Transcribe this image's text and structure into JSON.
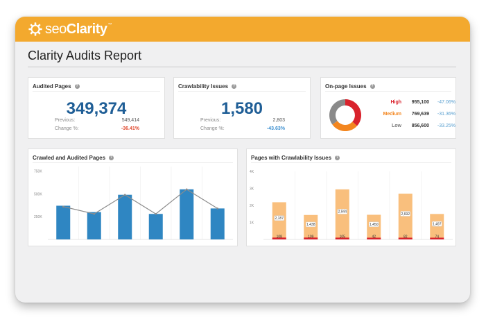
{
  "brand": {
    "name_part1": "seo",
    "name_part2": "Clarity",
    "tm": "™",
    "accent": "#f3a92e"
  },
  "page_title": "Clarity Audits Report",
  "audited_pages": {
    "title": "Audited Pages",
    "help": "?",
    "value": "349,374",
    "previous_label": "Previous:",
    "previous_value": "549,414",
    "change_label": "Change %:",
    "change_value": "-36.41%",
    "change_color": "#e0492e"
  },
  "crawlability_issues": {
    "title": "Crawlability Issues",
    "help": "?",
    "value": "1,580",
    "previous_label": "Previous:",
    "previous_value": "2,803",
    "change_label": "Change %:",
    "change_value": "-43.63%",
    "change_color": "#3b8fd0"
  },
  "onpage_issues": {
    "title": "On-page Issues",
    "help": "?",
    "rows": [
      {
        "label": "High",
        "count": "955,100",
        "pct": "-47.06%",
        "color": "#d9232d"
      },
      {
        "label": "Medium",
        "count": "769,639",
        "pct": "-31.36%",
        "color": "#f3861f"
      },
      {
        "label": "Low",
        "count": "856,600",
        "pct": "-33.25%",
        "color": "#8a8a8a"
      }
    ]
  },
  "chart_data": [
    {
      "type": "bar",
      "title": "Crawled and Audited Pages",
      "help": "?",
      "y_ticks": [
        "750K",
        "500K",
        "250K"
      ],
      "ylim": [
        0,
        800000
      ],
      "series": [
        {
          "values": [
            370000,
            300000,
            490000,
            280000,
            550000,
            340000
          ],
          "color": "#2f86c2"
        },
        {
          "type": "line",
          "values": [
            360000,
            280000,
            490000,
            280000,
            550000,
            340000
          ],
          "color": "#8c8c8c"
        }
      ],
      "grid": true
    },
    {
      "type": "bar",
      "title": "Pages with Crawlability Issues",
      "help": "?",
      "y_ticks": [
        "4K",
        "3K",
        "2K",
        "1K"
      ],
      "ylim": [
        0,
        4000
      ],
      "series": [
        {
          "values": [
            2187,
            1438,
            2944,
            1450,
            2692,
            1497
          ],
          "color": "#f9bf7d"
        },
        {
          "values": [
            108,
            109,
            105,
            42,
            82,
            74
          ],
          "color": "#d9232d"
        }
      ],
      "labels_top": [
        "2,187",
        "1,438",
        "2,944",
        "1,450",
        "2,692",
        "1,497"
      ],
      "labels_bottom": [
        "108",
        "109",
        "105",
        "42",
        "82",
        "74"
      ],
      "grid": true
    }
  ]
}
